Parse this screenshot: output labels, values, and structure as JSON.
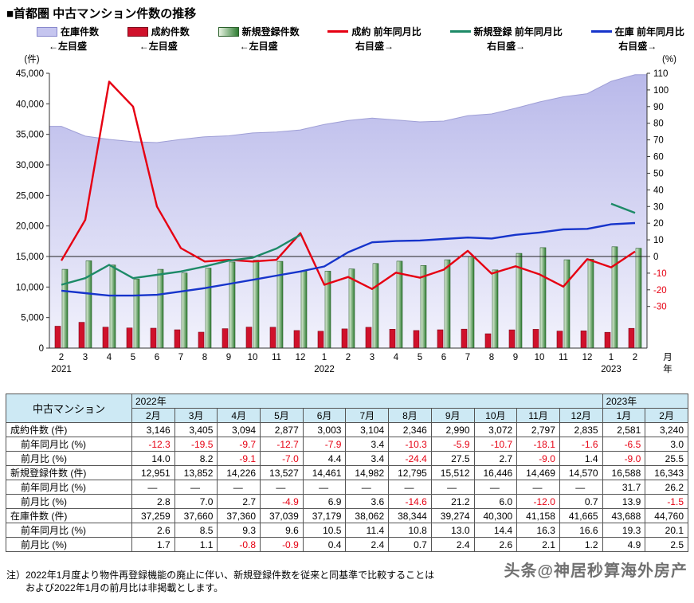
{
  "title": "■首都圏 中古マンション件数の推移",
  "legend": {
    "items": [
      {
        "id": "inventory",
        "label": "在庫件数",
        "sub": "←左目盛",
        "type": "box",
        "color": "#c5c5ef",
        "color2": null,
        "border": "#8888cc"
      },
      {
        "id": "contracts",
        "label": "成約件数",
        "sub": "←左目盛",
        "type": "box",
        "color": "#d0112b",
        "color2": null,
        "border": "#7c0a1a"
      },
      {
        "id": "registrations",
        "label": "新規登録件数",
        "sub": "←左目盛",
        "type": "box",
        "color": "#e8f3e2",
        "color2": "#2f7d33",
        "border": "#2a5f2a"
      },
      {
        "id": "contracts-yoy",
        "label": "成約 前年同月比",
        "sub": "右目盛→",
        "type": "line",
        "color": "#e60012",
        "color2": null,
        "border": null
      },
      {
        "id": "registrations-yoy",
        "label": "新規登録 前年同月比",
        "sub": "右目盛→",
        "type": "line",
        "color": "#1d8a67",
        "color2": null,
        "border": null
      },
      {
        "id": "inventory-yoy",
        "label": "在庫 前年同月比",
        "sub": "右目盛→",
        "type": "line",
        "color": "#1634cb",
        "color2": null,
        "border": null
      }
    ]
  },
  "chart_data": {
    "type": "combo",
    "x_months": [
      "2",
      "3",
      "4",
      "5",
      "6",
      "7",
      "8",
      "9",
      "10",
      "11",
      "12",
      "1",
      "2",
      "3",
      "4",
      "5",
      "6",
      "7",
      "8",
      "9",
      "10",
      "11",
      "12",
      "1",
      "2"
    ],
    "year_labels": [
      {
        "label": "2021",
        "index": 0
      },
      {
        "label": "2022",
        "index": 11
      },
      {
        "label": "2023",
        "index": 23
      }
    ],
    "x_unit": "月",
    "year_unit": "年",
    "left_axis": {
      "label": "(件)",
      "min": 0,
      "max": 45000,
      "tick_step": 5000
    },
    "right_axis": {
      "label": "(%)",
      "min": -30,
      "max": 110,
      "tick_step": 10,
      "zero_left_equiv": 15000,
      "unit_left_equiv": 272.73
    },
    "grid": false,
    "colors": {
      "area_top": "#b9b9ea",
      "area_bottom": "#f2f2fc",
      "area_edge": "#9f9fd6",
      "deal_bar": "#d0112b",
      "deal_bar_edge": "#7c0a1a",
      "reg_bar_light": "#e8f3e2",
      "reg_bar_dark": "#2f7d33",
      "reg_bar_edge": "#2a5f2a",
      "negative": "#e60012"
    },
    "series": [
      {
        "name": "在庫件数",
        "type": "area",
        "axis": "left",
        "data_name": "inventory-area-series",
        "color": "#c5c5ef",
        "values": [
          36315,
          34710,
          34180,
          33790,
          33650,
          34170,
          34610,
          34760,
          35230,
          35390,
          35730,
          36620,
          37259,
          37660,
          37360,
          37039,
          37179,
          38062,
          38344,
          39274,
          40300,
          41158,
          41665,
          43688,
          44760
        ]
      },
      {
        "name": "成約件数",
        "type": "bar",
        "axis": "left",
        "data_name": "contracts-bar-series",
        "color": "#d0112b",
        "values": [
          3587,
          4230,
          3426,
          3295,
          3261,
          3002,
          2615,
          3177,
          3440,
          3415,
          2881,
          2760,
          3146,
          3405,
          3094,
          2877,
          3003,
          3104,
          2346,
          2990,
          3072,
          2797,
          2835,
          2581,
          3240
        ]
      },
      {
        "name": "新規登録件数",
        "type": "bar",
        "axis": "left",
        "data_name": "registrations-bar-series",
        "color": "#2f7d33",
        "values": [
          12900,
          14300,
          13600,
          11300,
          12900,
          12300,
          13100,
          14100,
          14400,
          14200,
          12600,
          12598,
          12951,
          13852,
          14226,
          13527,
          14461,
          14982,
          12795,
          15512,
          16446,
          14469,
          14570,
          16588,
          16343
        ]
      },
      {
        "name": "成約 前年同月比",
        "type": "line",
        "axis": "right",
        "data_name": "contracts-yoy-line",
        "color": "#e60012",
        "values": [
          -2.5,
          22,
          105,
          90,
          30,
          5,
          -3,
          -2,
          -3,
          -2,
          14,
          -17,
          -12.3,
          -19.5,
          -9.7,
          -12.7,
          -7.9,
          3.4,
          -10.3,
          -5.9,
          -10.7,
          -18.1,
          -1.6,
          -6.5,
          3.0
        ]
      },
      {
        "name": "新規登録 前年同月比",
        "type": "line",
        "axis": "right",
        "data_name": "registrations-yoy-line",
        "color": "#1d8a67",
        "values": [
          -17,
          -13,
          -5,
          -13,
          -11,
          -9,
          -6,
          -2.5,
          -0.7,
          4.8,
          13,
          null,
          null,
          null,
          null,
          null,
          null,
          null,
          null,
          null,
          null,
          null,
          null,
          31.7,
          26.2
        ]
      },
      {
        "name": "在庫 前年同月比",
        "type": "line",
        "axis": "right",
        "data_name": "inventory-yoy-line",
        "color": "#1634cb",
        "values": [
          -20.5,
          -22,
          -23.5,
          -23.5,
          -23,
          -21,
          -19,
          -16.5,
          -14,
          -11.5,
          -9,
          -6,
          2.6,
          8.5,
          9.3,
          9.6,
          10.5,
          11.4,
          10.8,
          13.0,
          14.4,
          16.3,
          16.6,
          19.3,
          20.1
        ]
      }
    ]
  },
  "table": {
    "corner_label": "中古マンション",
    "year_headers": [
      {
        "label": "2022年",
        "colspan": 11
      },
      {
        "label": "2023年",
        "colspan": 2
      }
    ],
    "month_headers": [
      "2月",
      "3月",
      "4月",
      "5月",
      "6月",
      "7月",
      "8月",
      "9月",
      "10月",
      "11月",
      "12月",
      "1月",
      "2月"
    ],
    "rows": [
      {
        "label": "成約件数 (件)",
        "indent": false,
        "values": [
          "3,146",
          "3,405",
          "3,094",
          "2,877",
          "3,003",
          "3,104",
          "2,346",
          "2,990",
          "3,072",
          "2,797",
          "2,835",
          "2,581",
          "3,240"
        ]
      },
      {
        "label": "前年同月比 (%)",
        "indent": true,
        "values": [
          "-12.3",
          "-19.5",
          "-9.7",
          "-12.7",
          "-7.9",
          "3.4",
          "-10.3",
          "-5.9",
          "-10.7",
          "-18.1",
          "-1.6",
          "-6.5",
          "3.0"
        ]
      },
      {
        "label": "前月比 (%)",
        "indent": true,
        "values": [
          "14.0",
          "8.2",
          "-9.1",
          "-7.0",
          "4.4",
          "3.4",
          "-24.4",
          "27.5",
          "2.7",
          "-9.0",
          "1.4",
          "-9.0",
          "25.5"
        ]
      },
      {
        "label": "新規登録件数 (件)",
        "indent": false,
        "values": [
          "12,951",
          "13,852",
          "14,226",
          "13,527",
          "14,461",
          "14,982",
          "12,795",
          "15,512",
          "16,446",
          "14,469",
          "14,570",
          "16,588",
          "16,343"
        ]
      },
      {
        "label": "前年同月比 (%)",
        "indent": true,
        "values": [
          "―",
          "―",
          "―",
          "―",
          "―",
          "―",
          "―",
          "―",
          "―",
          "―",
          "―",
          "31.7",
          "26.2"
        ]
      },
      {
        "label": "前月比 (%)",
        "indent": true,
        "values": [
          "2.8",
          "7.0",
          "2.7",
          "-4.9",
          "6.9",
          "3.6",
          "-14.6",
          "21.2",
          "6.0",
          "-12.0",
          "0.7",
          "13.9",
          "-1.5"
        ]
      },
      {
        "label": "在庫件数 (件)",
        "indent": false,
        "values": [
          "37,259",
          "37,660",
          "37,360",
          "37,039",
          "37,179",
          "38,062",
          "38,344",
          "39,274",
          "40,300",
          "41,158",
          "41,665",
          "43,688",
          "44,760"
        ]
      },
      {
        "label": "前年同月比 (%)",
        "indent": true,
        "values": [
          "2.6",
          "8.5",
          "9.3",
          "9.6",
          "10.5",
          "11.4",
          "10.8",
          "13.0",
          "14.4",
          "16.3",
          "16.6",
          "19.3",
          "20.1"
        ]
      },
      {
        "label": "前月比 (%)",
        "indent": true,
        "values": [
          "1.7",
          "1.1",
          "-0.8",
          "-0.9",
          "0.4",
          "2.4",
          "0.7",
          "2.4",
          "2.6",
          "2.1",
          "1.2",
          "4.9",
          "2.5"
        ]
      }
    ]
  },
  "notes": {
    "line1": "注）2022年1月度より物件再登録機能の廃止に伴い、新規登録件数を従来と同基準で比較することは",
    "line2": "および2022年1月の前月比は非掲載とします。"
  },
  "watermark": "头条@神居秒算海外房产"
}
